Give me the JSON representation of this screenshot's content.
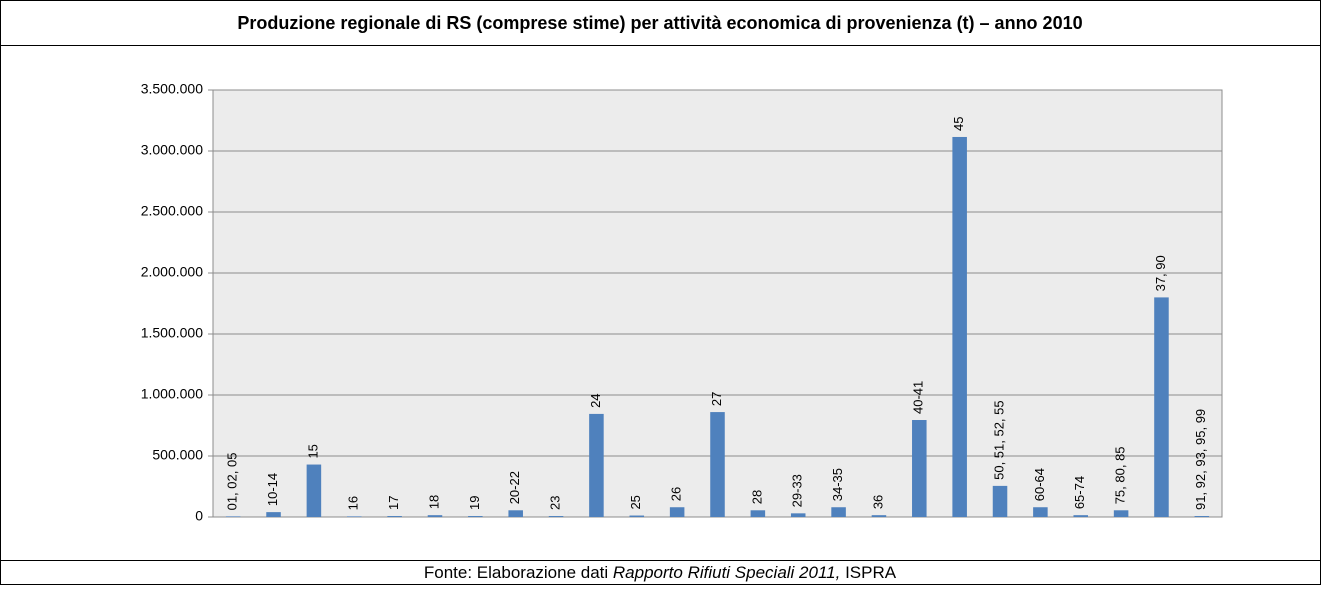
{
  "chart_data": {
    "type": "bar",
    "title": "Produzione regionale di RS (comprese stime) per attività economica di provenienza (t) – anno 2010",
    "categories": [
      "01, 02, 05",
      "10-14",
      "15",
      "16",
      "17",
      "18",
      "19",
      "20-22",
      "23",
      "24",
      "25",
      "26",
      "27",
      "28",
      "29-33",
      "34-35",
      "36",
      "40-41",
      "45",
      "50, 51, 52, 55",
      "60-64",
      "65-74",
      "75, 80, 85",
      "37, 90",
      "91, 92, 93, 95, 99"
    ],
    "values": [
      5000,
      40000,
      430000,
      5000,
      8000,
      15000,
      8000,
      55000,
      8000,
      845000,
      12000,
      80000,
      860000,
      55000,
      30000,
      80000,
      15000,
      795000,
      3115000,
      255000,
      80000,
      15000,
      55000,
      1800000,
      8000
    ],
    "color": "#4f81bd",
    "ylim": [
      0,
      3500000
    ],
    "yticks": [
      0,
      {
        "value": 500000,
        "label": "500.000"
      },
      {
        "value": 1000000,
        "label": "1.000.000"
      },
      {
        "value": 1500000,
        "label": "1.500.000"
      },
      {
        "value": 2000000,
        "label": "2.000.000"
      },
      {
        "value": 2500000,
        "label": "2.500.000"
      },
      {
        "value": 3000000,
        "label": "3.000.000"
      },
      {
        "value": 3500000,
        "label": "3.500.000"
      }
    ],
    "grid": true
  },
  "source": [
    "Fonte: Elaborazione dati ",
    "Rapporto Rifiuti Speciali 2011,",
    " ISPRA"
  ]
}
